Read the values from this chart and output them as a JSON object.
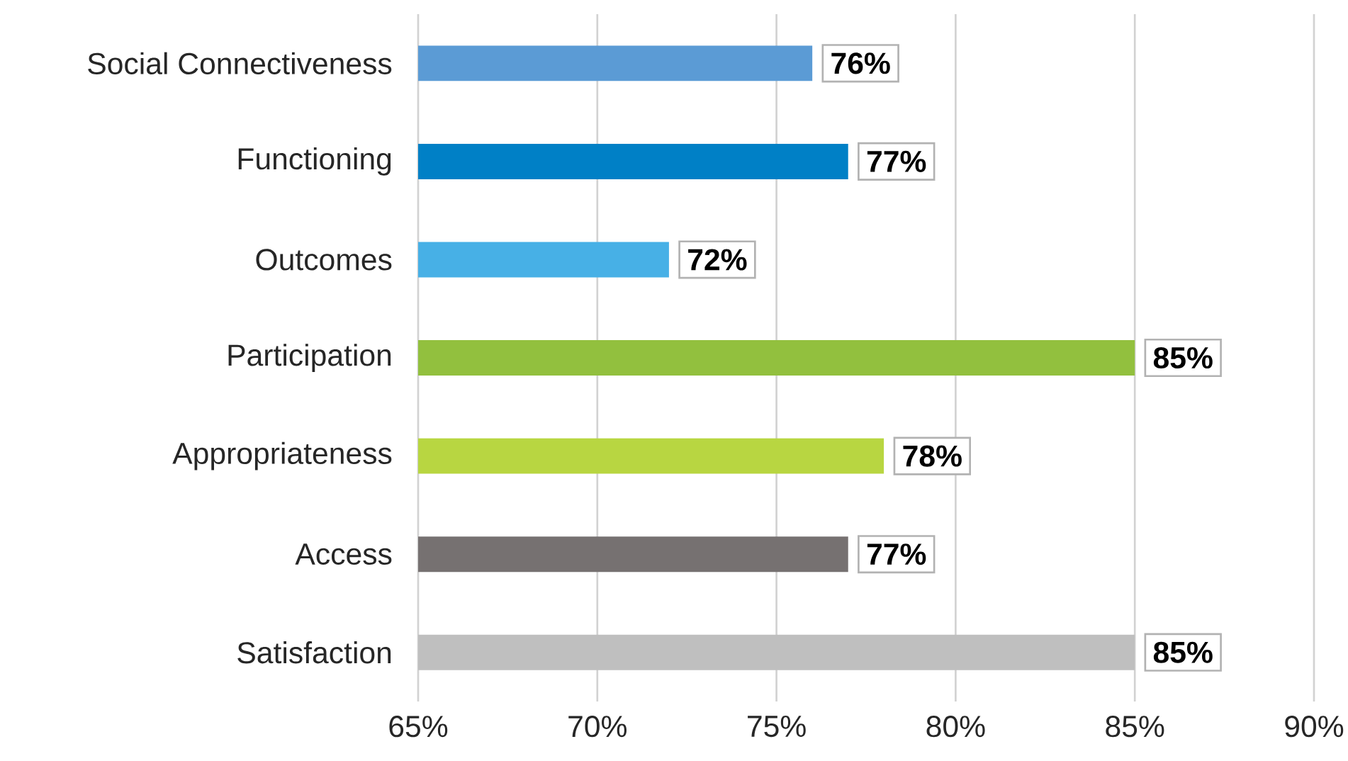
{
  "chart_data": {
    "type": "bar",
    "orientation": "horizontal",
    "categories": [
      "Social Connectiveness",
      "Functioning",
      "Outcomes",
      "Participation",
      "Appropriateness",
      "Access",
      "Satisfaction"
    ],
    "values": [
      76,
      77,
      72,
      85,
      78,
      77,
      85
    ],
    "value_labels": [
      "76%",
      "77%",
      "72%",
      "85%",
      "78%",
      "77%",
      "85%"
    ],
    "colors": [
      "#5b9bd5",
      "#0080c6",
      "#47b0e6",
      "#92c03e",
      "#b8d641",
      "#767171",
      "#bfbfbf"
    ],
    "xlim": [
      65,
      90
    ],
    "xticks": [
      {
        "value": 65,
        "label": "65%"
      },
      {
        "value": 70,
        "label": "70%"
      },
      {
        "value": 75,
        "label": "75%"
      },
      {
        "value": 80,
        "label": "80%"
      },
      {
        "value": 85,
        "label": "85%"
      },
      {
        "value": 90,
        "label": "90%"
      }
    ],
    "grid": "x"
  }
}
